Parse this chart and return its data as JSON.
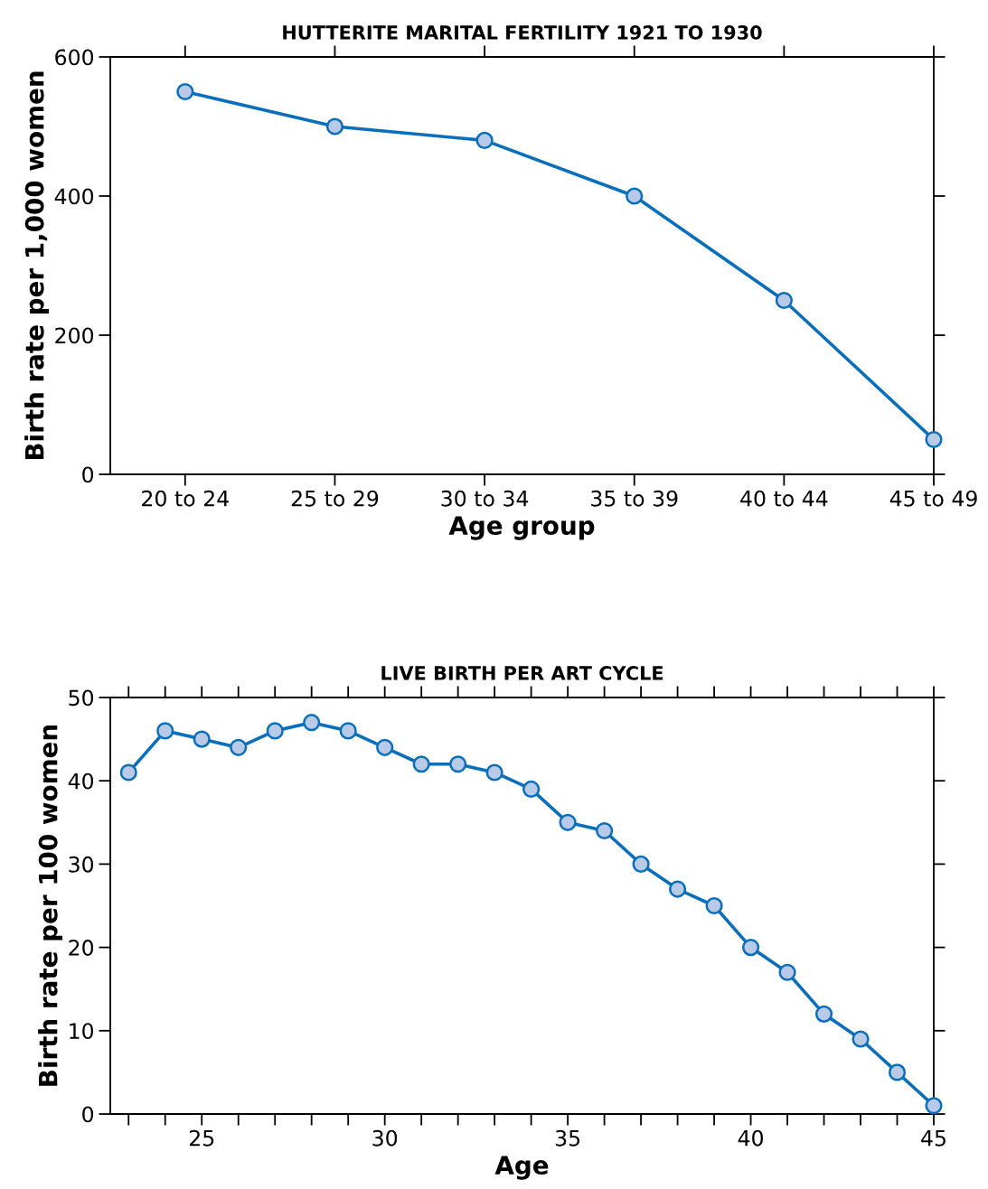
{
  "chart_data": [
    {
      "type": "line",
      "title": "HUTTERITE MARITAL FERTILITY 1921 TO 1930",
      "xlabel": "Age group",
      "ylabel": "Birth rate per 1,000 women",
      "categories": [
        "20 to 24",
        "25 to 29",
        "30 to 34",
        "35 to 39",
        "40 to 44",
        "45 to 49"
      ],
      "series": [
        {
          "color": "#0a6fba",
          "values": [
            550,
            500,
            480,
            400,
            250,
            50
          ]
        }
      ],
      "ylim": [
        0,
        600
      ],
      "yticks": [
        0,
        200,
        400,
        600
      ],
      "marker": "circle",
      "line_style": "solid",
      "grid": false,
      "legend": false
    },
    {
      "type": "line",
      "title": "LIVE BIRTH PER ART CYCLE",
      "xlabel": "Age",
      "ylabel": "Birth rate per 100 women",
      "x": [
        23,
        24,
        25,
        26,
        27,
        28,
        29,
        30,
        31,
        32,
        33,
        34,
        35,
        36,
        37,
        38,
        39,
        40,
        41,
        42,
        43,
        44,
        45
      ],
      "series": [
        {
          "color": "#0a6fba",
          "values": [
            41,
            46,
            45,
            44,
            46,
            47,
            46,
            44,
            42,
            42,
            41,
            39,
            35,
            34,
            30,
            27,
            25,
            20,
            17,
            12,
            9,
            5,
            1
          ]
        }
      ],
      "xlim": [
        22.5,
        45
      ],
      "xticks": [
        {
          "value": 23,
          "label": null
        },
        {
          "value": 24,
          "label": null
        },
        25,
        {
          "value": 26,
          "label": null
        },
        {
          "value": 27,
          "label": null
        },
        {
          "value": 28,
          "label": null
        },
        {
          "value": 29,
          "label": null
        },
        30,
        {
          "value": 31,
          "label": null
        },
        {
          "value": 32,
          "label": null
        },
        {
          "value": 33,
          "label": null
        },
        {
          "value": 34,
          "label": null
        },
        35,
        {
          "value": 36,
          "label": null
        },
        {
          "value": 37,
          "label": null
        },
        {
          "value": 38,
          "label": null
        },
        {
          "value": 39,
          "label": null
        },
        40,
        {
          "value": 41,
          "label": null
        },
        {
          "value": 42,
          "label": null
        },
        {
          "value": 43,
          "label": null
        },
        {
          "value": 44,
          "label": null
        },
        45
      ],
      "ylim": [
        0,
        50
      ],
      "yticks": [
        0,
        10,
        20,
        30,
        40,
        50
      ],
      "marker": "circle",
      "line_style": "solid",
      "grid": false,
      "legend": false
    }
  ]
}
